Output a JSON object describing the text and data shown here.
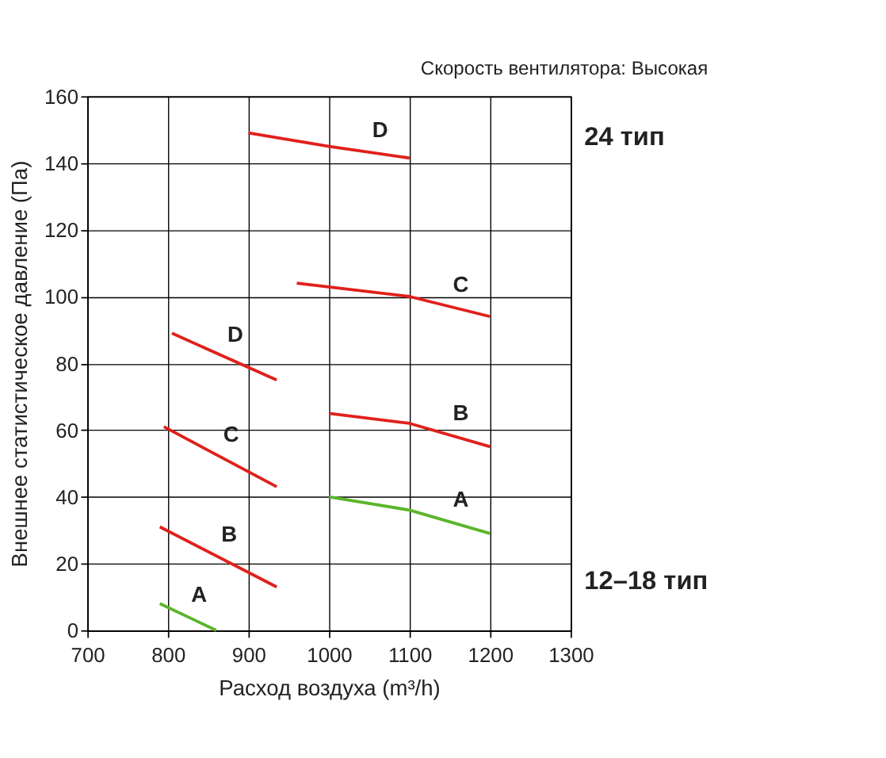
{
  "chart_data": {
    "type": "line",
    "title": "Скорость вентилятора: Высокая",
    "xlabel": "Расход воздуха (m³/h)",
    "ylabel": "Внешнее статистическое давление (Па)",
    "series": [
      {
        "name": "A",
        "color": "#5bb52a",
        "x": [
          790,
          860
        ],
        "values": [
          8,
          0
        ]
      },
      {
        "name": "B",
        "color": "#e0201b",
        "x": [
          790,
          935
        ],
        "values": [
          31,
          13
        ]
      },
      {
        "name": "C",
        "color": "#e0201b",
        "x": [
          795,
          935
        ],
        "values": [
          61,
          43
        ]
      },
      {
        "name": "D",
        "color": "#e0201b",
        "x": [
          805,
          935
        ],
        "values": [
          89,
          75
        ]
      },
      {
        "name": "A",
        "color": "#5bb52a",
        "x": [
          1000,
          1100,
          1200
        ],
        "values": [
          40,
          36,
          29
        ]
      },
      {
        "name": "B",
        "color": "#e0201b",
        "x": [
          1000,
          1100,
          1200
        ],
        "values": [
          65,
          62,
          55
        ]
      },
      {
        "name": "C",
        "color": "#e0201b",
        "x": [
          960,
          1100,
          1200
        ],
        "values": [
          104,
          100,
          94
        ]
      },
      {
        "name": "D",
        "color": "#e0201b",
        "x": [
          900,
          1000,
          1100
        ],
        "values": [
          149,
          145,
          141.5
        ]
      }
    ],
    "annotations": [
      "24 тип",
      "12–18 тип"
    ],
    "xlim": [
      700,
      1300
    ],
    "xticks": [
      700,
      800,
      900,
      1000,
      1100,
      1200,
      1300
    ],
    "ylim": [
      0,
      160
    ],
    "yticks": [
      0,
      20,
      40,
      60,
      80,
      100,
      120,
      140,
      160
    ],
    "grid": true,
    "legend": false,
    "marker": "none",
    "line_style": "solid"
  }
}
